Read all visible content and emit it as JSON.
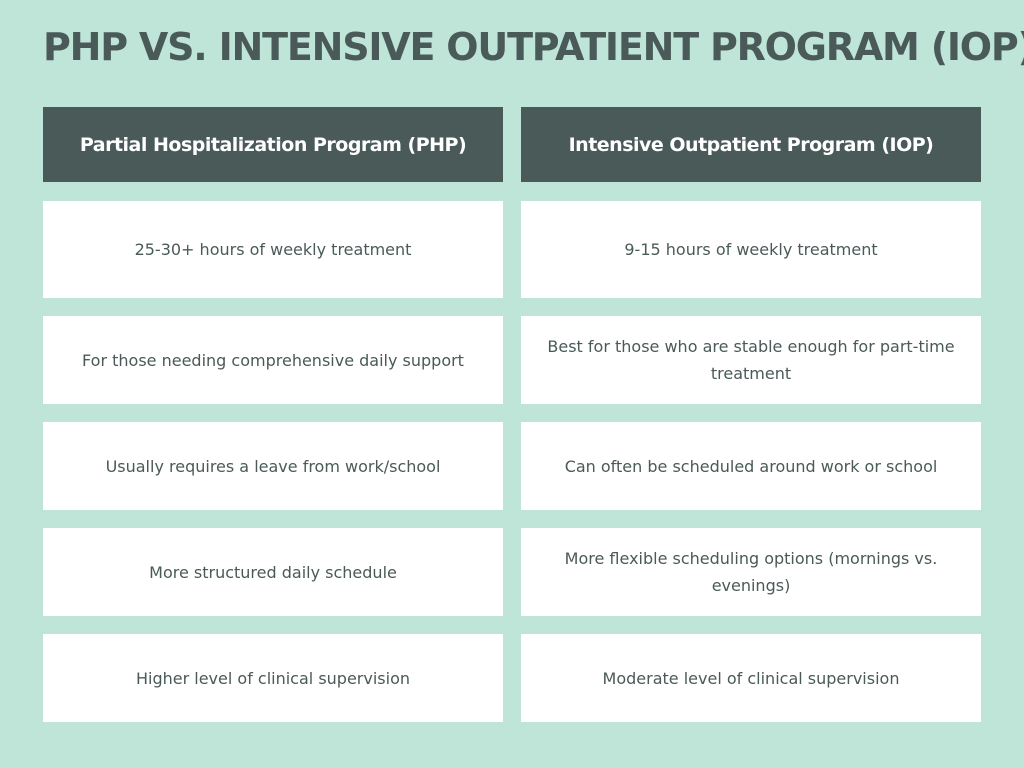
{
  "title": "PHP VS. INTENSIVE OUTPATIENT PROGRAM (IOP)",
  "columns": [
    {
      "header": "Partial Hospitalization Program (PHP)",
      "rows": [
        "25-30+ hours of weekly treatment",
        "For those needing comprehensive daily support",
        "Usually requires a leave from work/school",
        "More structured daily schedule",
        "Higher level of clinical supervision"
      ]
    },
    {
      "header": "Intensive Outpatient Program (IOP)",
      "rows": [
        "9-15 hours of weekly treatment",
        "Best for those who are stable enough for part-time treatment",
        "Can often be scheduled around work or school",
        "More flexible scheduling options (mornings vs. evenings)",
        "Moderate level of clinical supervision"
      ]
    }
  ],
  "colors": {
    "background": "#bee5d8",
    "header_bg": "#4a5a58",
    "cell_bg": "#ffffff",
    "text": "#4a5a58"
  }
}
